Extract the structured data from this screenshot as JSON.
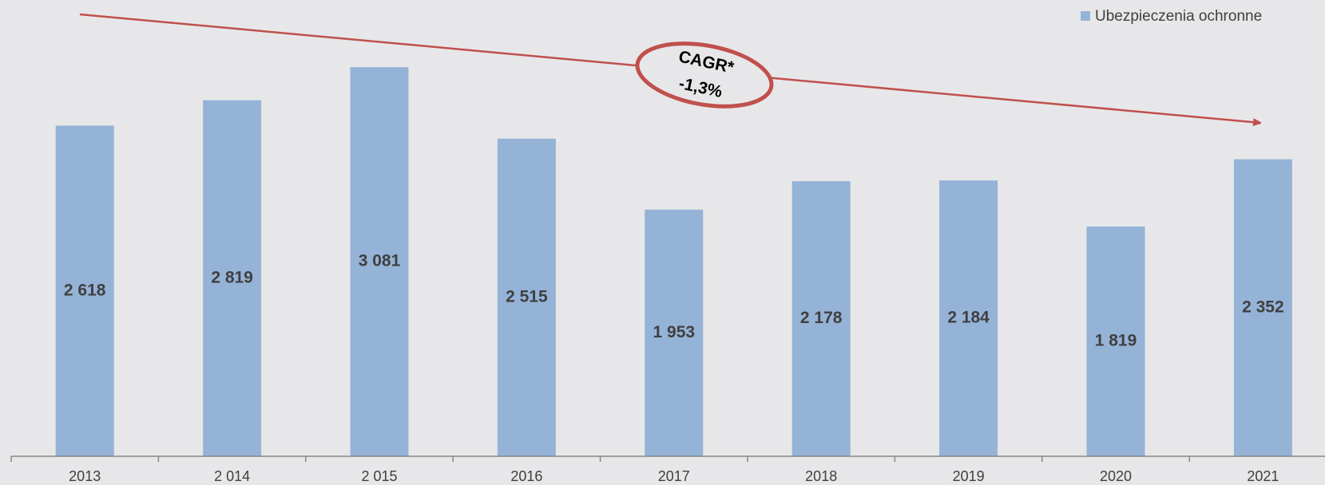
{
  "chart_data": {
    "type": "bar",
    "categories": [
      "2013",
      "2 014",
      "2 015",
      "2016",
      "2017",
      "2018",
      "2019",
      "2020",
      "2021"
    ],
    "series": [
      {
        "name": "Ubezpieczenia ochronne",
        "color": "#95b3d7",
        "values": [
          2618,
          2819,
          3081,
          2515,
          1953,
          2178,
          2184,
          1819,
          2352
        ],
        "value_labels": [
          "2 618",
          "2 819",
          "3 081",
          "2 515",
          "1 953",
          "2 178",
          "2 184",
          "1 819",
          "2 352"
        ]
      }
    ],
    "ylim": [
      0,
      3600
    ],
    "legend": "top-right",
    "annotations": [
      "CAGR*",
      "-1,3%"
    ]
  }
}
